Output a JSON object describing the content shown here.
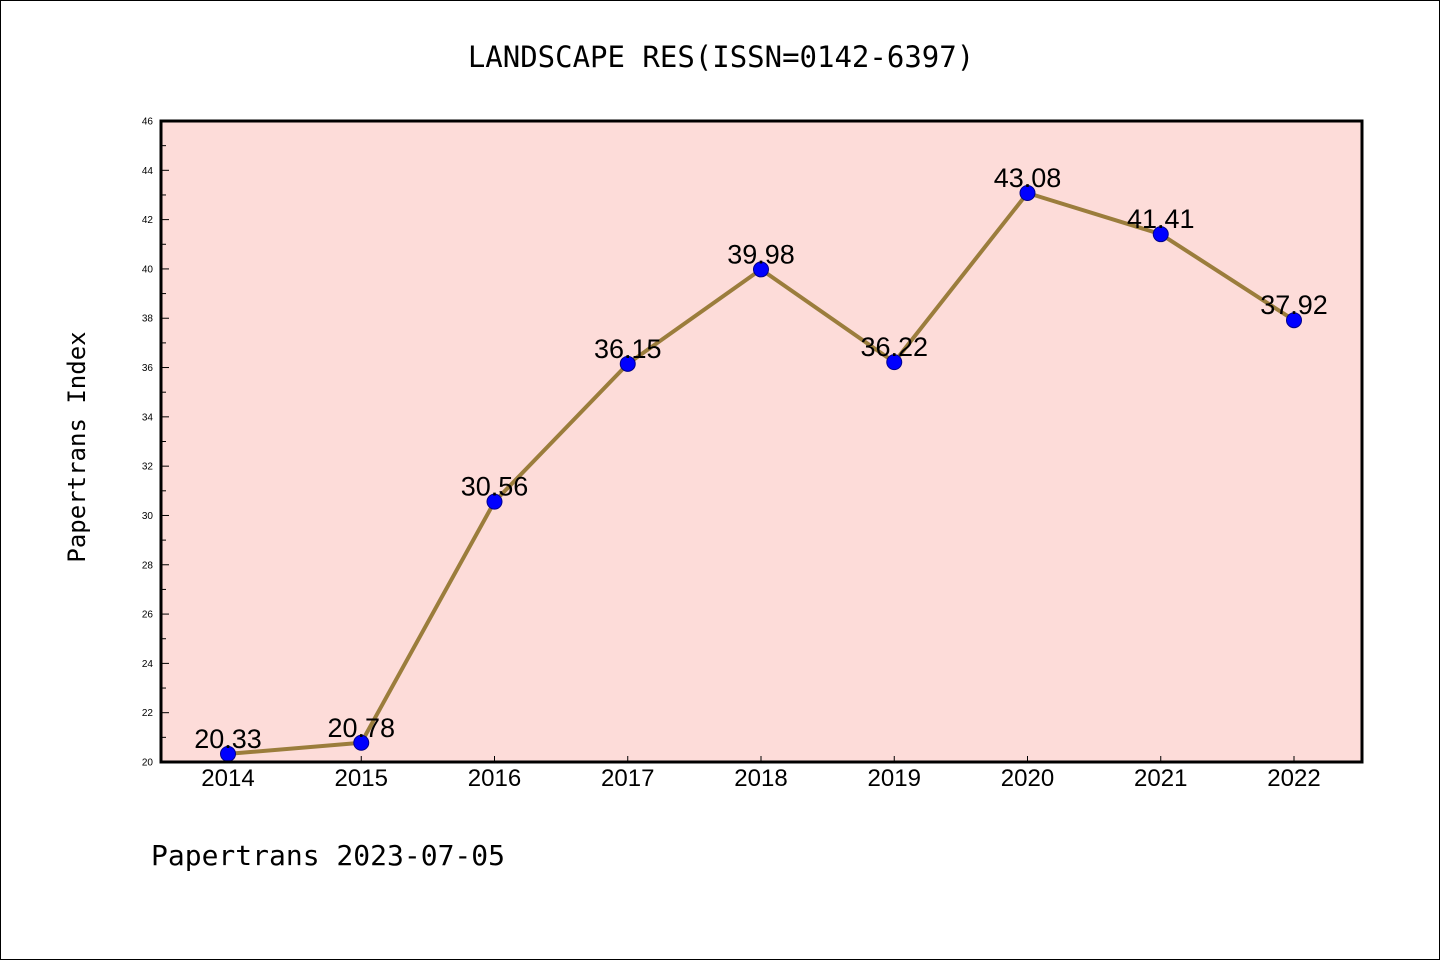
{
  "chart_data": {
    "type": "line",
    "title": "LANDSCAPE RES(ISSN=0142-6397)",
    "xlabel": "",
    "ylabel": "Papertrans Index",
    "categories": [
      "2014",
      "2015",
      "2016",
      "2017",
      "2018",
      "2019",
      "2020",
      "2021",
      "2022"
    ],
    "series": [
      {
        "values": [
          20.33,
          20.78,
          30.56,
          36.15,
          39.98,
          36.22,
          43.08,
          41.41,
          37.92
        ],
        "data_labels": [
          "20.33",
          "20.78",
          "30.56",
          "36.15",
          "39.98",
          "36.22",
          "43.08",
          "41.41",
          "37.92"
        ]
      }
    ],
    "ylim": [
      20,
      46
    ],
    "yticks": [
      20,
      22,
      24,
      26,
      28,
      30,
      32,
      34,
      36,
      38,
      40,
      42,
      44,
      46
    ],
    "grid": false,
    "legend": "none"
  },
  "footer": "Papertrans 2023-07-05",
  "colors": {
    "plot_background": "#fddcd9",
    "line": "#9b7d3c",
    "marker": "#0000ff",
    "axes": "#000000"
  }
}
